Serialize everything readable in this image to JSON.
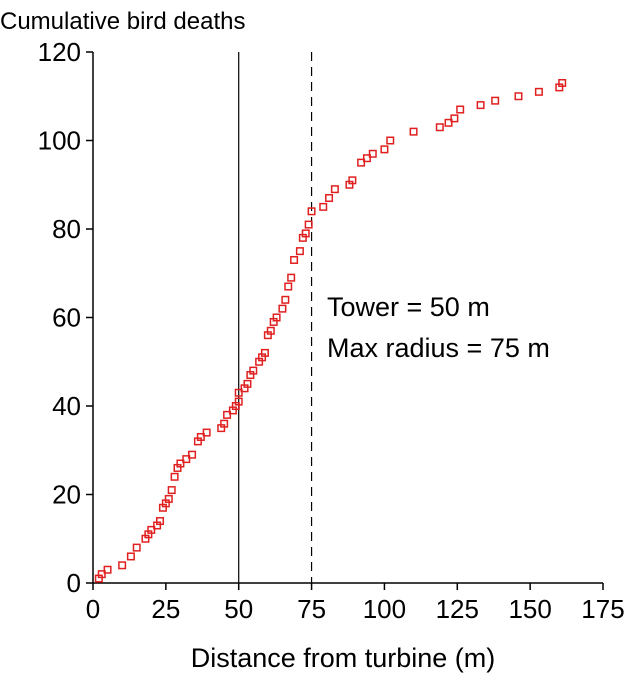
{
  "chart_data": {
    "type": "scatter",
    "title": "",
    "ylabel": "Cumulative bird deaths",
    "xlabel": "Distance from turbine (m)",
    "xlim": [
      0,
      175
    ],
    "ylim": [
      0,
      120
    ],
    "x_ticks": [
      0,
      25,
      50,
      75,
      100,
      125,
      150,
      175
    ],
    "y_ticks": [
      0,
      20,
      40,
      60,
      80,
      100,
      120
    ],
    "grid": false,
    "legend": "none",
    "marker": "hollow-square",
    "marker_color": "#e02020",
    "reference_lines": [
      {
        "x": 50,
        "style": "solid"
      },
      {
        "x": 75,
        "style": "dashed"
      }
    ],
    "annotations": [
      "Tower = 50 m",
      "Max radius = 75 m"
    ],
    "points": [
      [
        2,
        1
      ],
      [
        3,
        2
      ],
      [
        5,
        3
      ],
      [
        10,
        4
      ],
      [
        13,
        6
      ],
      [
        15,
        8
      ],
      [
        18,
        10
      ],
      [
        19,
        11
      ],
      [
        20,
        12
      ],
      [
        22,
        13
      ],
      [
        23,
        14
      ],
      [
        24,
        17
      ],
      [
        25,
        18
      ],
      [
        26,
        19
      ],
      [
        27,
        21
      ],
      [
        28,
        24
      ],
      [
        29,
        26
      ],
      [
        30,
        27
      ],
      [
        32,
        28
      ],
      [
        34,
        29
      ],
      [
        36,
        32
      ],
      [
        37,
        33
      ],
      [
        39,
        34
      ],
      [
        44,
        35
      ],
      [
        45,
        36
      ],
      [
        46,
        38
      ],
      [
        48,
        39
      ],
      [
        49,
        40
      ],
      [
        50,
        41
      ],
      [
        50,
        43
      ],
      [
        52,
        44
      ],
      [
        53,
        45
      ],
      [
        54,
        47
      ],
      [
        55,
        48
      ],
      [
        57,
        50
      ],
      [
        58,
        51
      ],
      [
        59,
        52
      ],
      [
        60,
        56
      ],
      [
        61,
        57
      ],
      [
        62,
        59
      ],
      [
        63,
        60
      ],
      [
        65,
        62
      ],
      [
        66,
        64
      ],
      [
        67,
        67
      ],
      [
        68,
        69
      ],
      [
        69,
        73
      ],
      [
        71,
        75
      ],
      [
        72,
        78
      ],
      [
        73,
        79
      ],
      [
        74,
        81
      ],
      [
        75,
        84
      ],
      [
        79,
        85
      ],
      [
        81,
        87
      ],
      [
        83,
        89
      ],
      [
        88,
        90
      ],
      [
        89,
        91
      ],
      [
        92,
        95
      ],
      [
        94,
        96
      ],
      [
        96,
        97
      ],
      [
        100,
        98
      ],
      [
        102,
        100
      ],
      [
        110,
        102
      ],
      [
        119,
        103
      ],
      [
        122,
        104
      ],
      [
        124,
        105
      ],
      [
        126,
        107
      ],
      [
        133,
        108
      ],
      [
        138,
        109
      ],
      [
        146,
        110
      ],
      [
        153,
        111
      ],
      [
        160,
        112
      ],
      [
        161,
        113
      ]
    ]
  }
}
